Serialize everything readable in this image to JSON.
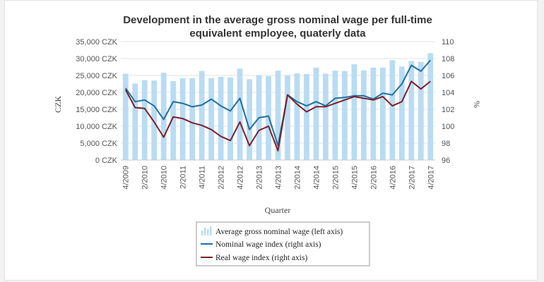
{
  "chart_data": {
    "type": "bar",
    "title_line1": "Development in the average gross nominal wage per full-time",
    "title_line2": "equivalent employee, quaterly data",
    "xlabel": "Quarter",
    "ylabel_left": "CZK",
    "ylabel_right": "%",
    "ylim_left": [
      0,
      35000
    ],
    "ylim_right": [
      96,
      110
    ],
    "left_ticks": [
      "0 CZK",
      "5,000 CZK",
      "10,000 CZK",
      "15,000 CZK",
      "20,000 CZK",
      "25,000 CZK",
      "30,000 CZK",
      "35,000 CZK"
    ],
    "right_ticks": [
      "96",
      "98",
      "100",
      "102",
      "104",
      "106",
      "108",
      "110"
    ],
    "x_tick_labels": [
      "4/2009",
      "2/2010",
      "4/2010",
      "2/2011",
      "4/2011",
      "2/2012",
      "4/2012",
      "2/2013",
      "4/2013",
      "2/2014",
      "4/2014",
      "2/2015",
      "4/2015",
      "2/2016",
      "4/2016",
      "2/2017",
      "4/2017"
    ],
    "categories": [
      "4/2009",
      "1/2010",
      "2/2010",
      "3/2010",
      "4/2010",
      "1/2011",
      "2/2011",
      "3/2011",
      "4/2011",
      "1/2012",
      "2/2012",
      "3/2012",
      "4/2012",
      "1/2013",
      "2/2013",
      "3/2013",
      "4/2013",
      "1/2014",
      "2/2014",
      "3/2014",
      "4/2014",
      "1/2015",
      "2/2015",
      "3/2015",
      "4/2015",
      "1/2016",
      "2/2016",
      "3/2016",
      "4/2016",
      "1/2017",
      "2/2017",
      "3/2017",
      "4/2017"
    ],
    "series": [
      {
        "name": "Average gross nominal wage (left axis)",
        "axis": "left",
        "kind": "bar",
        "color": "#b9dcf2",
        "values": [
          25500,
          22600,
          23600,
          23500,
          25800,
          23300,
          24200,
          24200,
          26300,
          24200,
          24600,
          24400,
          27000,
          23900,
          25100,
          24800,
          26400,
          25000,
          25600,
          25400,
          27300,
          25500,
          26400,
          26300,
          28300,
          26500,
          27300,
          27300,
          29500,
          27600,
          29300,
          29000,
          31600
        ]
      },
      {
        "name": "Nominal wage index (right axis)",
        "axis": "right",
        "kind": "line",
        "color": "#1f6f9f",
        "values": [
          104.5,
          102.9,
          103.1,
          102.4,
          100.8,
          102.9,
          102.7,
          102.3,
          102.5,
          103.2,
          102.4,
          101.8,
          103.3,
          99.6,
          101.0,
          101.2,
          97.7,
          103.7,
          102.9,
          102.4,
          102.9,
          102.4,
          103.3,
          103.4,
          103.6,
          103.6,
          103.2,
          103.9,
          103.7,
          105.0,
          107.2,
          106.5,
          107.8
        ]
      },
      {
        "name": "Real wage index (right axis)",
        "axis": "right",
        "kind": "line",
        "color": "#7b1f2b",
        "values": [
          104.3,
          102.2,
          102.1,
          100.5,
          98.7,
          101.1,
          100.9,
          100.4,
          100.1,
          99.6,
          98.8,
          98.3,
          100.5,
          97.7,
          99.5,
          100.0,
          97.1,
          103.7,
          102.6,
          101.7,
          102.3,
          102.3,
          102.7,
          103.1,
          103.5,
          103.3,
          103.1,
          103.5,
          102.4,
          102.9,
          105.3,
          104.4,
          105.3
        ]
      }
    ],
    "legend_position": "bottom-center",
    "grid": true
  }
}
